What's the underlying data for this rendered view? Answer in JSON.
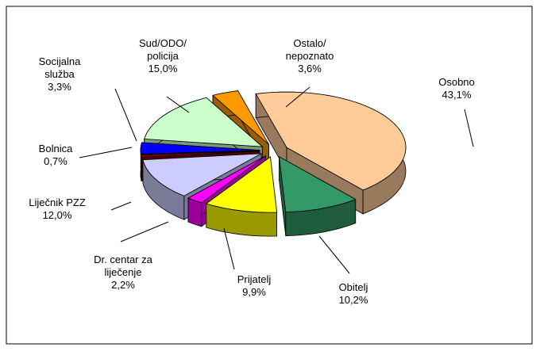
{
  "chart_data": {
    "type": "pie3d",
    "categories": [
      "Osobno",
      "Obitelj",
      "Prijatelj",
      "Dr. centar za\nliječenje",
      "Liječnik PZZ",
      "Bolnica",
      "Socijalna\nslužba",
      "Sud/ODO/\npolicija",
      "Ostalo/\nnepoznato"
    ],
    "values": [
      43.1,
      10.2,
      9.9,
      2.2,
      12.0,
      0.7,
      3.3,
      15.0,
      3.6
    ],
    "value_labels": [
      "43,1%",
      "10,2%",
      "9,9%",
      "2,2%",
      "12,0%",
      "0,7%",
      "3,3%",
      "15,0%",
      "3,6%"
    ],
    "colors": [
      "#FFCC99",
      "#339966",
      "#FFFF00",
      "#FF00FF",
      "#CCCCFF",
      "#800000",
      "#0000FF",
      "#CCFFCC",
      "#FF9900"
    ]
  }
}
